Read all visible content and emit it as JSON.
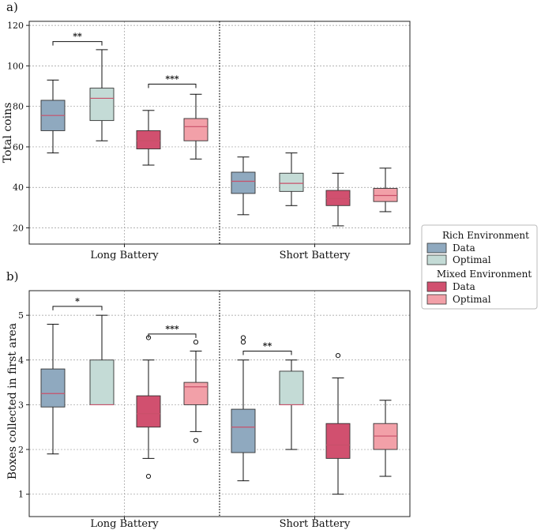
{
  "legend": {
    "groups": [
      {
        "title": "Rich Environment",
        "items": [
          {
            "label": "Data",
            "color": "#8fa9bf"
          },
          {
            "label": "Optimal",
            "color": "#c4dbd6"
          }
        ]
      },
      {
        "title": "Mixed Environment",
        "items": [
          {
            "label": "Data",
            "color": "#d1506f"
          },
          {
            "label": "Optimal",
            "color": "#f2a0a8"
          }
        ]
      }
    ]
  },
  "colors": {
    "median": "#c8506a",
    "whisker": "#111111",
    "grid": "#9a9a9a"
  },
  "chart_data": [
    {
      "type": "boxplot",
      "panel_label": "a)",
      "ylabel": "Total coins",
      "ylim": [
        12,
        122
      ],
      "yticks": [
        20,
        40,
        60,
        80,
        100,
        120
      ],
      "grid": true,
      "categories": [
        "Long Battery",
        "Short Battery"
      ],
      "series_order": [
        "Rich Environment Data",
        "Rich Environment Optimal",
        "Mixed Environment Data",
        "Mixed Environment Optimal"
      ],
      "boxes": [
        {
          "category": "Long Battery",
          "series": 0,
          "q1": 68,
          "median": 75.5,
          "q3": 83,
          "whislo": 57,
          "whishi": 93,
          "fliers": []
        },
        {
          "category": "Long Battery",
          "series": 1,
          "q1": 73,
          "median": 84,
          "q3": 89,
          "whislo": 63,
          "whishi": 108,
          "fliers": []
        },
        {
          "category": "Long Battery",
          "series": 2,
          "q1": 59,
          "median": 63,
          "q3": 68,
          "whislo": 51,
          "whishi": 78,
          "fliers": []
        },
        {
          "category": "Long Battery",
          "series": 3,
          "q1": 63,
          "median": 70,
          "q3": 74,
          "whislo": 54,
          "whishi": 86,
          "fliers": []
        },
        {
          "category": "Short Battery",
          "series": 0,
          "q1": 37,
          "median": 43,
          "q3": 47.5,
          "whislo": 26.5,
          "whishi": 55,
          "fliers": []
        },
        {
          "category": "Short Battery",
          "series": 1,
          "q1": 38,
          "median": 42,
          "q3": 47,
          "whislo": 31,
          "whishi": 57,
          "fliers": []
        },
        {
          "category": "Short Battery",
          "series": 2,
          "q1": 31,
          "median": 34.5,
          "q3": 38.5,
          "whislo": 21,
          "whishi": 47,
          "fliers": []
        },
        {
          "category": "Short Battery",
          "series": 3,
          "q1": 33,
          "median": 36,
          "q3": 39.5,
          "whislo": 28,
          "whishi": 49.5,
          "fliers": []
        }
      ],
      "significance": [
        {
          "from": 0,
          "to": 1,
          "label": "**",
          "y": 112
        },
        {
          "from": 2,
          "to": 3,
          "label": "***",
          "y": 91
        }
      ]
    },
    {
      "type": "boxplot",
      "panel_label": "b)",
      "ylabel": "Boxes collected in first area",
      "ylim": [
        0.5,
        5.55
      ],
      "yticks": [
        1,
        2,
        3,
        4,
        5
      ],
      "grid": true,
      "categories": [
        "Long Battery",
        "Short Battery"
      ],
      "series_order": [
        "Rich Environment Data",
        "Rich Environment Optimal",
        "Mixed Environment Data",
        "Mixed Environment Optimal"
      ],
      "boxes": [
        {
          "category": "Long Battery",
          "series": 0,
          "q1": 2.95,
          "median": 3.25,
          "q3": 3.8,
          "whislo": 1.9,
          "whishi": 4.8,
          "fliers": []
        },
        {
          "category": "Long Battery",
          "series": 1,
          "q1": 3.0,
          "median": 3.0,
          "q3": 4.0,
          "whislo": 3.0,
          "whishi": 5.0,
          "fliers": []
        },
        {
          "category": "Long Battery",
          "series": 2,
          "q1": 2.5,
          "median": 2.8,
          "q3": 3.2,
          "whislo": 1.8,
          "whishi": 4.0,
          "fliers": [
            4.5,
            1.4
          ]
        },
        {
          "category": "Long Battery",
          "series": 3,
          "q1": 3.0,
          "median": 3.4,
          "q3": 3.5,
          "whislo": 2.4,
          "whishi": 4.2,
          "fliers": [
            4.4,
            2.2
          ]
        },
        {
          "category": "Short Battery",
          "series": 0,
          "q1": 1.93,
          "median": 2.5,
          "q3": 2.9,
          "whislo": 1.3,
          "whishi": 4.0,
          "fliers": [
            4.5,
            4.4
          ]
        },
        {
          "category": "Short Battery",
          "series": 1,
          "q1": 3.0,
          "median": 3.0,
          "q3": 3.75,
          "whislo": 2.0,
          "whishi": 4.0,
          "fliers": []
        },
        {
          "category": "Short Battery",
          "series": 2,
          "q1": 1.8,
          "median": 2.1,
          "q3": 2.58,
          "whislo": 1.0,
          "whishi": 3.6,
          "fliers": [
            4.1
          ]
        },
        {
          "category": "Short Battery",
          "series": 3,
          "q1": 2.0,
          "median": 2.3,
          "q3": 2.58,
          "whislo": 1.4,
          "whishi": 3.1,
          "fliers": []
        }
      ],
      "significance": [
        {
          "from": 0,
          "to": 1,
          "label": "*",
          "y": 5.2
        },
        {
          "from": 2,
          "to": 3,
          "label": "***",
          "y": 4.58
        },
        {
          "from": 4,
          "to": 5,
          "label": "**",
          "y": 4.2
        }
      ]
    }
  ]
}
